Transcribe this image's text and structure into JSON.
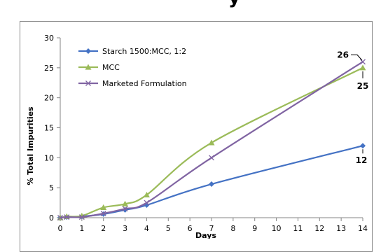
{
  "chart_data": {
    "type": "line",
    "title_fragment": "y",
    "xlabel": "Days",
    "ylabel": "% Total Impurities",
    "xlim": [
      0,
      14
    ],
    "ylim": [
      0,
      30
    ],
    "x_ticks": [
      0,
      1,
      2,
      3,
      4,
      5,
      6,
      7,
      8,
      9,
      10,
      11,
      12,
      13,
      14
    ],
    "y_ticks": [
      0,
      5,
      10,
      15,
      20,
      25,
      30
    ],
    "grid": false,
    "legend_position": "top-left",
    "series": [
      {
        "name": "Starch 1500:MCC, 1:2",
        "color": "#4472C4",
        "marker": "diamond",
        "x": [
          0,
          0.3,
          1,
          2,
          3,
          4,
          7,
          14
        ],
        "y": [
          0,
          0.1,
          0.2,
          0.6,
          1.3,
          2.1,
          5.6,
          12
        ]
      },
      {
        "name": "MCC",
        "color": "#9BBB59",
        "marker": "triangle",
        "x": [
          0,
          0.3,
          1,
          2,
          3,
          4,
          7,
          14
        ],
        "y": [
          0,
          0.2,
          0.3,
          1.7,
          2.3,
          3.8,
          12.5,
          25
        ]
      },
      {
        "name": "Marketed Formulation",
        "color": "#8064A2",
        "marker": "x",
        "x": [
          0,
          0.3,
          1,
          2,
          3,
          4,
          7,
          14
        ],
        "y": [
          0,
          0.1,
          0.1,
          0.7,
          1.5,
          2.5,
          10,
          26
        ]
      }
    ],
    "annotations": [
      {
        "text": "26",
        "x": 14,
        "y": 26,
        "series": "Marketed Formulation"
      },
      {
        "text": "25",
        "x": 14,
        "y": 25,
        "series": "MCC"
      },
      {
        "text": "12",
        "x": 14,
        "y": 12,
        "series": "Starch 1500:MCC, 1:2"
      }
    ]
  }
}
